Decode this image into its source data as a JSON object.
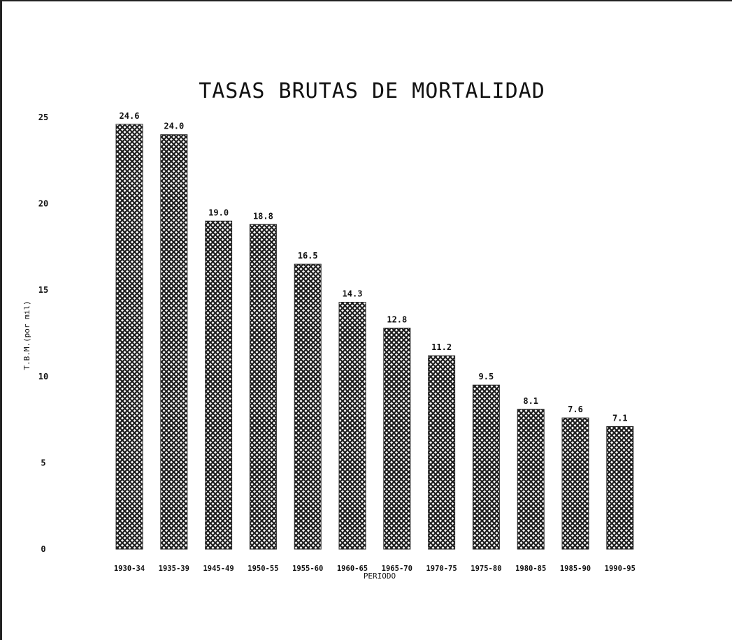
{
  "chart_data": {
    "type": "bar",
    "title": "TASAS BRUTAS DE MORTALIDAD",
    "xlabel": "PERIODO",
    "ylabel": "T.B.M.(por mil)",
    "ylim": [
      0,
      25
    ],
    "yticks": [
      "0",
      "5",
      "10",
      "15",
      "20",
      "25"
    ],
    "grid": false,
    "categories": [
      "1930-34",
      "1935-39",
      "1945-49",
      "1950-55",
      "1955-60",
      "1960-65",
      "1965-70",
      "1970-75",
      "1975-80",
      "1980-85",
      "1985-90",
      "1990-95"
    ],
    "values": [
      24.6,
      24.0,
      19.0,
      18.8,
      16.5,
      14.3,
      12.8,
      11.2,
      9.5,
      8.1,
      7.6,
      7.1
    ],
    "value_labels": [
      "24.6",
      "24.0",
      "19.0",
      "18.8",
      "16.5",
      "14.3",
      "12.8",
      "11.2",
      "9.5",
      "8.1",
      "7.6",
      "7.1"
    ],
    "bar_color": "#2a2a2a",
    "pattern": "crosshatch"
  }
}
